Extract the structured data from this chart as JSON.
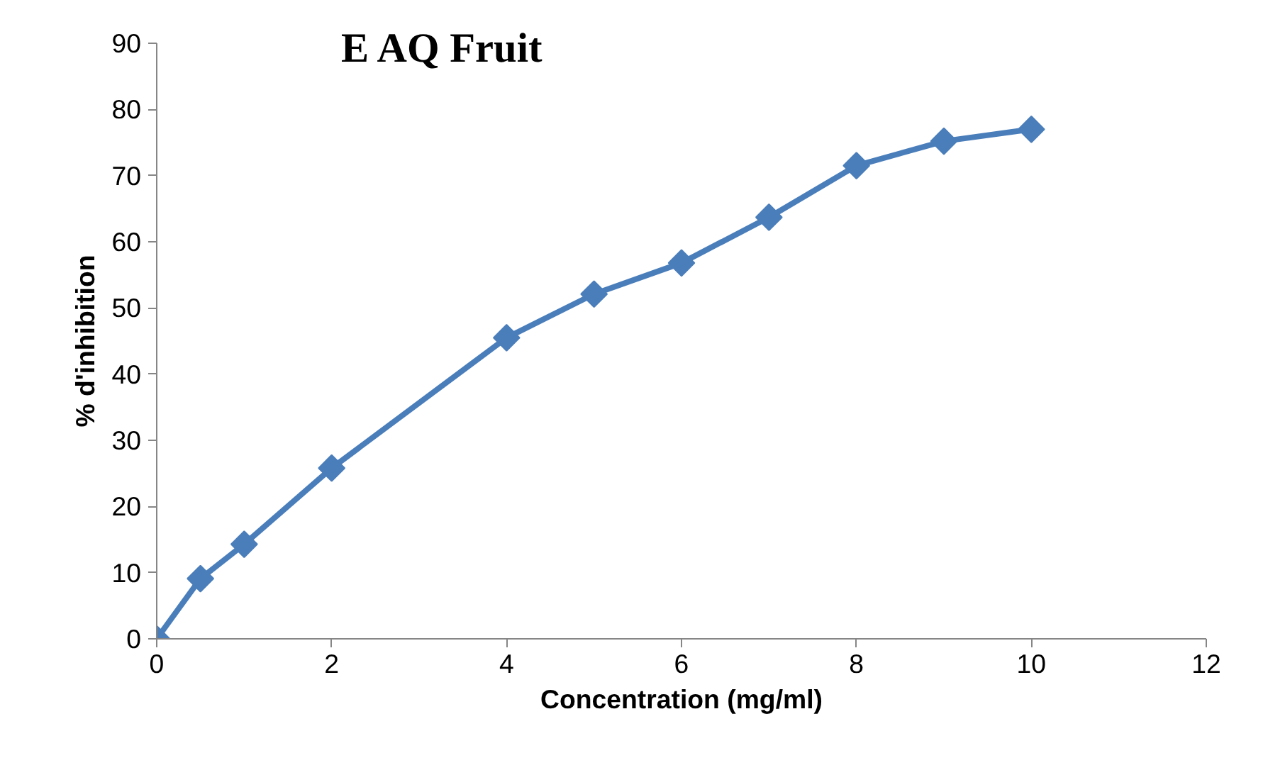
{
  "chart_data": {
    "type": "line",
    "title": "E AQ Fruit",
    "xlabel": "Concentration (mg/ml)",
    "ylabel": "% d'inhibition",
    "x": [
      0,
      0.5,
      1,
      2,
      4,
      5,
      6,
      7,
      8,
      9,
      10
    ],
    "series": [
      {
        "color": "#4a7ebb",
        "values": [
          0,
          9.1,
          14.3,
          25.8,
          45.5,
          52.1,
          56.8,
          63.7,
          71.5,
          75.2,
          77.0
        ]
      }
    ],
    "xlim": [
      0,
      12
    ],
    "xticks": [
      0,
      2,
      4,
      6,
      8,
      10,
      12
    ],
    "ylim": [
      0,
      90
    ],
    "yticks": [
      0,
      10,
      20,
      30,
      40,
      50,
      60,
      70,
      80,
      90
    ],
    "grid": false,
    "marker": "diamond",
    "line_style": "solid"
  }
}
